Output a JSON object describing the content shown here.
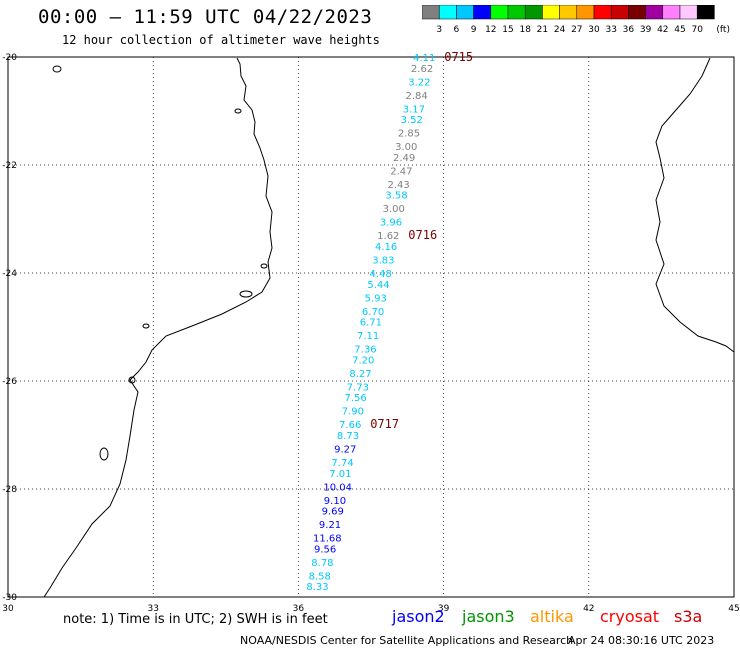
{
  "header": {
    "title": "00:00 – 11:59 UTC 04/22/2023",
    "subtitle": "12 hour collection of altimeter wave heights"
  },
  "colorbar": {
    "labels": [
      "3",
      "6",
      "9",
      "12",
      "15",
      "18",
      "21",
      "24",
      "27",
      "30",
      "33",
      "36",
      "39",
      "42",
      "45",
      "70"
    ],
    "unit": "(ft)",
    "colors": [
      "#808080",
      "#00ffff",
      "#00c8ff",
      "#0000ff",
      "#00ff00",
      "#00c800",
      "#009600",
      "#ffff00",
      "#ffc800",
      "#ff9600",
      "#ff0000",
      "#c80000",
      "#780000",
      "#a000a0",
      "#ff80ff",
      "#ffc8ff",
      "#000000"
    ]
  },
  "axes": {
    "lat_labels": [
      "-20",
      "-22",
      "-24",
      "-26",
      "-28",
      "-30"
    ],
    "lon_labels": [
      "30",
      "33",
      "36",
      "39",
      "42",
      "45"
    ],
    "lat_values": [
      -20,
      -22,
      -24,
      -26,
      -28,
      -30
    ],
    "lon_values": [
      30,
      33,
      36,
      39,
      42,
      45
    ]
  },
  "times": [
    {
      "label": "0715",
      "lat": -20.0
    },
    {
      "label": "0716",
      "lat": -23.3
    },
    {
      "label": "0717",
      "lat": -26.8
    }
  ],
  "swh": [
    {
      "v": "4.11",
      "lat": -20.0,
      "c": "#00c8ff"
    },
    {
      "v": "2.62",
      "lat": -20.2,
      "c": "#808080"
    },
    {
      "v": "3.22",
      "lat": -20.45,
      "c": "#00c8ff"
    },
    {
      "v": "2.84",
      "lat": -20.7,
      "c": "#808080"
    },
    {
      "v": "3.17",
      "lat": -20.95,
      "c": "#00c8ff"
    },
    {
      "v": "3.52",
      "lat": -21.15,
      "c": "#00c8ff"
    },
    {
      "v": "2.85",
      "lat": -21.4,
      "c": "#808080"
    },
    {
      "v": "3.00",
      "lat": -21.65,
      "c": "#808080"
    },
    {
      "v": "2.49",
      "lat": -21.85,
      "c": "#808080"
    },
    {
      "v": "2.47",
      "lat": -22.1,
      "c": "#808080"
    },
    {
      "v": "2.43",
      "lat": -22.35,
      "c": "#808080"
    },
    {
      "v": "3.58",
      "lat": -22.55,
      "c": "#00c8ff"
    },
    {
      "v": "3.00",
      "lat": -22.8,
      "c": "#808080"
    },
    {
      "v": "3.96",
      "lat": -23.05,
      "c": "#00c8ff"
    },
    {
      "v": "1.62",
      "lat": -23.3,
      "c": "#808080"
    },
    {
      "v": "4.16",
      "lat": -23.5,
      "c": "#00c8ff"
    },
    {
      "v": "3.83",
      "lat": -23.75,
      "c": "#00c8ff"
    },
    {
      "v": "4.48",
      "lat": -24.0,
      "c": "#00c8ff"
    },
    {
      "v": "5.44",
      "lat": -24.2,
      "c": "#00c8ff"
    },
    {
      "v": "5.93",
      "lat": -24.45,
      "c": "#00c8ff"
    },
    {
      "v": "6.70",
      "lat": -24.7,
      "c": "#00c8ff"
    },
    {
      "v": "6.71",
      "lat": -24.9,
      "c": "#00c8ff"
    },
    {
      "v": "7.11",
      "lat": -25.15,
      "c": "#00c8ff"
    },
    {
      "v": "7.36",
      "lat": -25.4,
      "c": "#00c8ff"
    },
    {
      "v": "7.20",
      "lat": -25.6,
      "c": "#00c8ff"
    },
    {
      "v": "8.27",
      "lat": -25.85,
      "c": "#00c8ff"
    },
    {
      "v": "7.73",
      "lat": -26.1,
      "c": "#00c8ff"
    },
    {
      "v": "7.56",
      "lat": -26.3,
      "c": "#00c8ff"
    },
    {
      "v": "7.90",
      "lat": -26.55,
      "c": "#00c8ff"
    },
    {
      "v": "7.66",
      "lat": -26.8,
      "c": "#00c8ff"
    },
    {
      "v": "8.73",
      "lat": -27.0,
      "c": "#00c8ff"
    },
    {
      "v": "9.27",
      "lat": -27.25,
      "c": "#0000ff"
    },
    {
      "v": "7.74",
      "lat": -27.5,
      "c": "#00c8ff"
    },
    {
      "v": "7.01",
      "lat": -27.7,
      "c": "#00c8ff"
    },
    {
      "v": "10.04",
      "lat": -27.95,
      "c": "#0000ff"
    },
    {
      "v": "9.10",
      "lat": -28.2,
      "c": "#0000ff"
    },
    {
      "v": "9.69",
      "lat": -28.4,
      "c": "#0000ff"
    },
    {
      "v": "9.21",
      "lat": -28.65,
      "c": "#0000ff"
    },
    {
      "v": "11.68",
      "lat": -28.9,
      "c": "#0000ff"
    },
    {
      "v": "9.56",
      "lat": -29.1,
      "c": "#0000ff"
    },
    {
      "v": "8.78",
      "lat": -29.35,
      "c": "#00c8ff"
    },
    {
      "v": "8.58",
      "lat": -29.6,
      "c": "#00c8ff"
    },
    {
      "v": "8.33",
      "lat": -29.8,
      "c": "#00c8ff"
    }
  ],
  "footer": {
    "note": "note: 1) Time is in UTC; 2) SWH is in feet",
    "legend": [
      {
        "name": "jason2",
        "color": "#0000ff"
      },
      {
        "name": "jason3",
        "color": "#009600"
      },
      {
        "name": "altika",
        "color": "#ff9600"
      },
      {
        "name": "cryosat",
        "color": "#ff0000"
      },
      {
        "name": "s3a",
        "color": "#c80000"
      }
    ],
    "credit": "NOAA/NESDIS Center for Satellite Applications and Research",
    "timestamp": "Apr 24 08:30:16 UTC 2023"
  }
}
